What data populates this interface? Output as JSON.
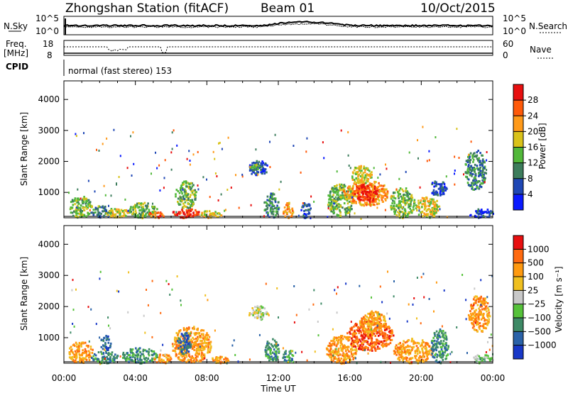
{
  "header": {
    "station": "Zhongshan Station (fitACF)",
    "beam": "Beam 01",
    "date": "10/Oct/2015"
  },
  "strips": {
    "nsky": {
      "label": "N.Sky",
      "ticks": [
        "10^5",
        "10^0"
      ]
    },
    "nsearch": {
      "label": "N.Search",
      "ticks": [
        "10^5",
        "10^0"
      ]
    },
    "freq": {
      "label_top": "Freq.",
      "label_bottom": "[MHz]",
      "ticks": [
        "18",
        "8"
      ]
    },
    "nave": {
      "label": "Nave",
      "ticks": [
        "60",
        "0"
      ]
    },
    "cpid": {
      "label": "CPID",
      "mode": "normal (fast stereo) 153"
    }
  },
  "chart_data": [
    {
      "type": "heatmap",
      "name": "power",
      "ylabel": "Slant Range [km]",
      "xlabel": "Time UT",
      "x_ticks": [
        "00:00",
        "04:00",
        "08:00",
        "12:00",
        "16:00",
        "20:00",
        "00:00"
      ],
      "x_range_hours": [
        0,
        24
      ],
      "y_ticks": [
        1000,
        2000,
        3000,
        4000
      ],
      "y_range_km": [
        180,
        4600
      ],
      "colorbar": {
        "label": "Power [dB]",
        "ticks": [
          "4",
          "8",
          "12",
          "16",
          "20",
          "24",
          "28"
        ],
        "range": [
          0,
          32
        ],
        "colors": [
          "#0a1aff",
          "#1f47b5",
          "#3d7d5c",
          "#52b83a",
          "#d9c21a",
          "#ff9a1a",
          "#ff5a0a",
          "#e81010"
        ]
      },
      "blobs": [
        {
          "t0": 0.2,
          "t1": 1.6,
          "r0": 200,
          "r1": 900,
          "c": 3
        },
        {
          "t0": 1.5,
          "t1": 2.7,
          "r0": 200,
          "r1": 600,
          "c": 2
        },
        {
          "t0": 2.3,
          "t1": 3.6,
          "r0": 220,
          "r1": 520,
          "c": 4
        },
        {
          "t0": 3.5,
          "t1": 5.2,
          "r0": 200,
          "r1": 700,
          "c": 3
        },
        {
          "t0": 4.7,
          "t1": 5.6,
          "r0": 200,
          "r1": 420,
          "c": 6
        },
        {
          "t0": 6.0,
          "t1": 7.6,
          "r0": 200,
          "r1": 500,
          "c": 7
        },
        {
          "t0": 6.2,
          "t1": 7.4,
          "r0": 500,
          "r1": 1400,
          "c": 3
        },
        {
          "t0": 7.6,
          "t1": 8.8,
          "r0": 200,
          "r1": 450,
          "c": 4
        },
        {
          "t0": 10.3,
          "t1": 11.4,
          "r0": 1550,
          "r1": 2050,
          "c": 1
        },
        {
          "t0": 10.4,
          "t1": 11.0,
          "r0": 1700,
          "r1": 1950,
          "c": 3
        },
        {
          "t0": 11.2,
          "t1": 12.0,
          "r0": 200,
          "r1": 1000,
          "c": 2
        },
        {
          "t0": 12.2,
          "t1": 12.8,
          "r0": 200,
          "r1": 700,
          "c": 5
        },
        {
          "t0": 13.2,
          "t1": 13.8,
          "r0": 200,
          "r1": 700,
          "c": 1
        },
        {
          "t0": 14.7,
          "t1": 16.2,
          "r0": 250,
          "r1": 1300,
          "c": 3
        },
        {
          "t0": 15.6,
          "t1": 18.2,
          "r0": 600,
          "r1": 1400,
          "c": 5
        },
        {
          "t0": 16.2,
          "t1": 17.6,
          "r0": 700,
          "r1": 1300,
          "c": 7
        },
        {
          "t0": 16.0,
          "t1": 17.2,
          "r0": 1300,
          "r1": 1900,
          "c": 4
        },
        {
          "t0": 18.2,
          "t1": 19.6,
          "r0": 200,
          "r1": 1200,
          "c": 3
        },
        {
          "t0": 19.6,
          "t1": 21.0,
          "r0": 200,
          "r1": 900,
          "c": 4
        },
        {
          "t0": 20.4,
          "t1": 21.4,
          "r0": 900,
          "r1": 1400,
          "c": 1
        },
        {
          "t0": 22.4,
          "t1": 23.6,
          "r0": 1100,
          "r1": 2400,
          "c": 2
        },
        {
          "t0": 22.6,
          "t1": 24.0,
          "r0": 200,
          "r1": 500,
          "c": 1
        }
      ]
    },
    {
      "type": "heatmap",
      "name": "velocity",
      "ylabel": "Slant Range [km]",
      "xlabel": "Time UT",
      "x_ticks": [
        "00:00",
        "04:00",
        "08:00",
        "12:00",
        "16:00",
        "20:00",
        "00:00"
      ],
      "x_range_hours": [
        0,
        24
      ],
      "y_ticks": [
        1000,
        2000,
        3000,
        4000
      ],
      "y_range_km": [
        180,
        4600
      ],
      "colorbar": {
        "label": "Velocity [m s⁻¹]",
        "ticks": [
          "1000",
          "500",
          "100",
          "25",
          "−25",
          "−100",
          "−500",
          "−1000"
        ],
        "colors": [
          "#1838c8",
          "#2a62a8",
          "#3e8a66",
          "#56c23a",
          "#c8c8c8",
          "#f0c020",
          "#ff9a10",
          "#ff6a10",
          "#e81010"
        ]
      },
      "blobs": [
        {
          "t0": 0.2,
          "t1": 1.6,
          "r0": 200,
          "r1": 900,
          "c": 6
        },
        {
          "t0": 1.5,
          "t1": 3.0,
          "r0": 200,
          "r1": 600,
          "c": 2
        },
        {
          "t0": 2.0,
          "t1": 2.6,
          "r0": 600,
          "r1": 1100,
          "c": 1
        },
        {
          "t0": 3.2,
          "t1": 5.2,
          "r0": 200,
          "r1": 700,
          "c": 2
        },
        {
          "t0": 5.0,
          "t1": 6.0,
          "r0": 200,
          "r1": 500,
          "c": 6
        },
        {
          "t0": 6.0,
          "t1": 8.2,
          "r0": 200,
          "r1": 1400,
          "c": 6
        },
        {
          "t0": 6.3,
          "t1": 7.1,
          "r0": 500,
          "r1": 1200,
          "c": 1
        },
        {
          "t0": 8.2,
          "t1": 9.2,
          "r0": 200,
          "r1": 450,
          "c": 6
        },
        {
          "t0": 10.3,
          "t1": 11.4,
          "r0": 1600,
          "r1": 2050,
          "c": 4
        },
        {
          "t0": 11.2,
          "t1": 12.0,
          "r0": 200,
          "r1": 1000,
          "c": 2
        },
        {
          "t0": 12.2,
          "t1": 12.8,
          "r0": 200,
          "r1": 700,
          "c": 2
        },
        {
          "t0": 14.6,
          "t1": 16.4,
          "r0": 200,
          "r1": 1100,
          "c": 6
        },
        {
          "t0": 15.8,
          "t1": 18.4,
          "r0": 600,
          "r1": 1600,
          "c": 7
        },
        {
          "t0": 16.5,
          "t1": 18.0,
          "r0": 1100,
          "r1": 1900,
          "c": 6
        },
        {
          "t0": 18.4,
          "t1": 20.6,
          "r0": 200,
          "r1": 1000,
          "c": 6
        },
        {
          "t0": 20.5,
          "t1": 21.5,
          "r0": 200,
          "r1": 1300,
          "c": 2
        },
        {
          "t0": 22.6,
          "t1": 23.8,
          "r0": 1200,
          "r1": 2400,
          "c": 6
        },
        {
          "t0": 22.8,
          "t1": 24.0,
          "r0": 200,
          "r1": 500,
          "c": 3
        }
      ]
    }
  ]
}
